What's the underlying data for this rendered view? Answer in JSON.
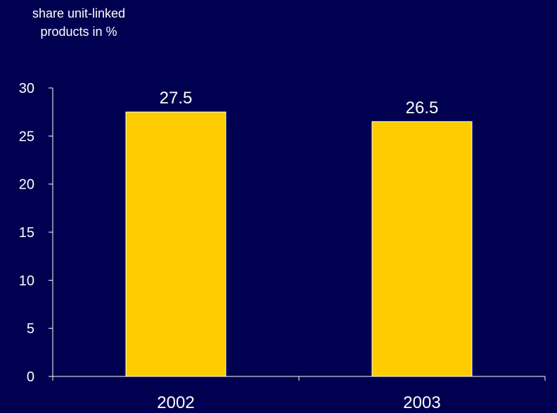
{
  "chart_data": {
    "type": "bar",
    "ylabel_lines": [
      "share unit-linked",
      "products in %"
    ],
    "categories": [
      "2002",
      "2003"
    ],
    "series": [
      {
        "values": [
          27.5,
          26.5
        ],
        "labels": [
          "27.5",
          "26.5"
        ]
      }
    ],
    "ylim": [
      0,
      30
    ],
    "yticks": [
      0,
      5,
      10,
      15,
      20,
      25,
      30
    ],
    "grid": false,
    "legend": "none",
    "colors": {
      "background": "#000050",
      "bar": "#FFCC00",
      "bar_outline": "#FFFFFF",
      "axis": "#FFFFFF",
      "text": "#FFFFFF"
    }
  }
}
